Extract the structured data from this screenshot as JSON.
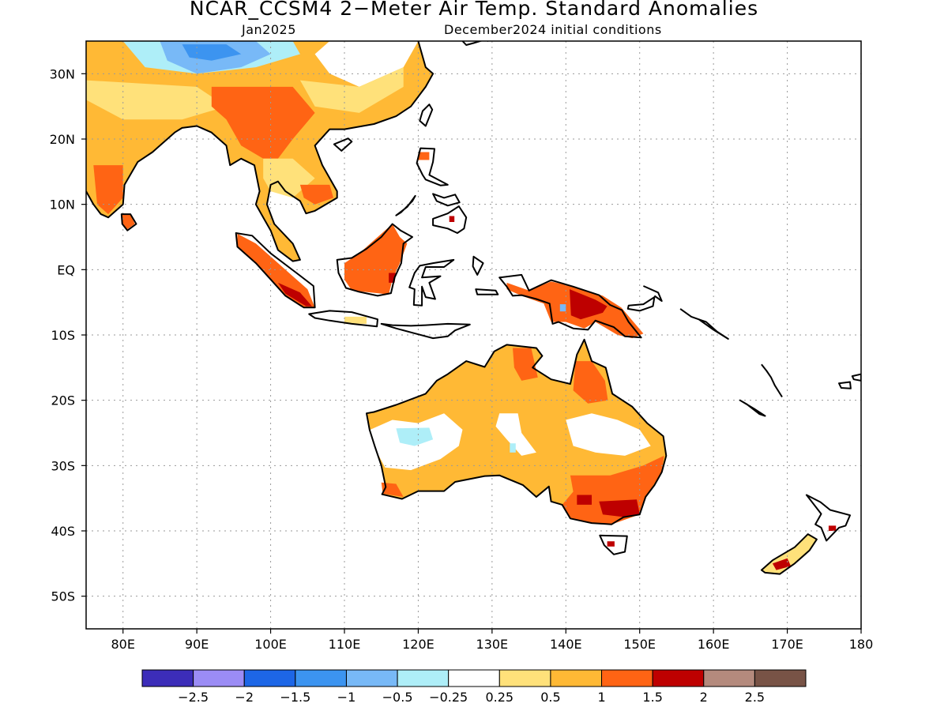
{
  "header": {
    "title": "NCAR_CCSM4 2−Meter Air Temp. Standard Anomalies",
    "valid_month": "Jan2025",
    "initial_conditions": "December2024 initial conditions"
  },
  "map": {
    "lon_range": [
      75,
      180
    ],
    "lat_range": [
      -55,
      35
    ],
    "x_ticks": [
      {
        "lon": 80,
        "label": "80E"
      },
      {
        "lon": 90,
        "label": "90E"
      },
      {
        "lon": 100,
        "label": "100E"
      },
      {
        "lon": 110,
        "label": "110E"
      },
      {
        "lon": 120,
        "label": "120E"
      },
      {
        "lon": 130,
        "label": "130E"
      },
      {
        "lon": 140,
        "label": "140E"
      },
      {
        "lon": 150,
        "label": "150E"
      },
      {
        "lon": 160,
        "label": "160E"
      },
      {
        "lon": 170,
        "label": "170E"
      },
      {
        "lon": 180,
        "label": "180"
      }
    ],
    "y_ticks": [
      {
        "lat": 30,
        "label": "30N"
      },
      {
        "lat": 20,
        "label": "20N"
      },
      {
        "lat": 10,
        "label": "10N"
      },
      {
        "lat": 0,
        "label": "EQ"
      },
      {
        "lat": -10,
        "label": "10S"
      },
      {
        "lat": -20,
        "label": "20S"
      },
      {
        "lat": -30,
        "label": "30S"
      },
      {
        "lat": -40,
        "label": "40S"
      },
      {
        "lat": -50,
        "label": "50S"
      }
    ],
    "grid": "dotted"
  },
  "colorbar": {
    "colors": [
      "#3c2db9",
      "#9b8cf5",
      "#1d66e6",
      "#3c94f0",
      "#78b9f7",
      "#aeeef8",
      "#ffffff",
      "#ffe17a",
      "#ffb935",
      "#ff6414",
      "#be0000",
      "#b48a7d",
      "#785346"
    ],
    "labels": [
      "−2.5",
      "−2",
      "−1.5",
      "−1",
      "−0.5",
      "−0.25",
      "0.25",
      "0.5",
      "1",
      "1.5",
      "2",
      "2.5"
    ]
  },
  "land_colors": {
    "outline": "#000000",
    "weak_warm": "#ffe17a",
    "warm": "#ffb935",
    "hot": "#ff6414",
    "very_hot": "#be0000",
    "cool": "#aeeef8",
    "cold": "#78b9f7",
    "colder": "#3c94f0",
    "neutral": "#ffffff"
  }
}
